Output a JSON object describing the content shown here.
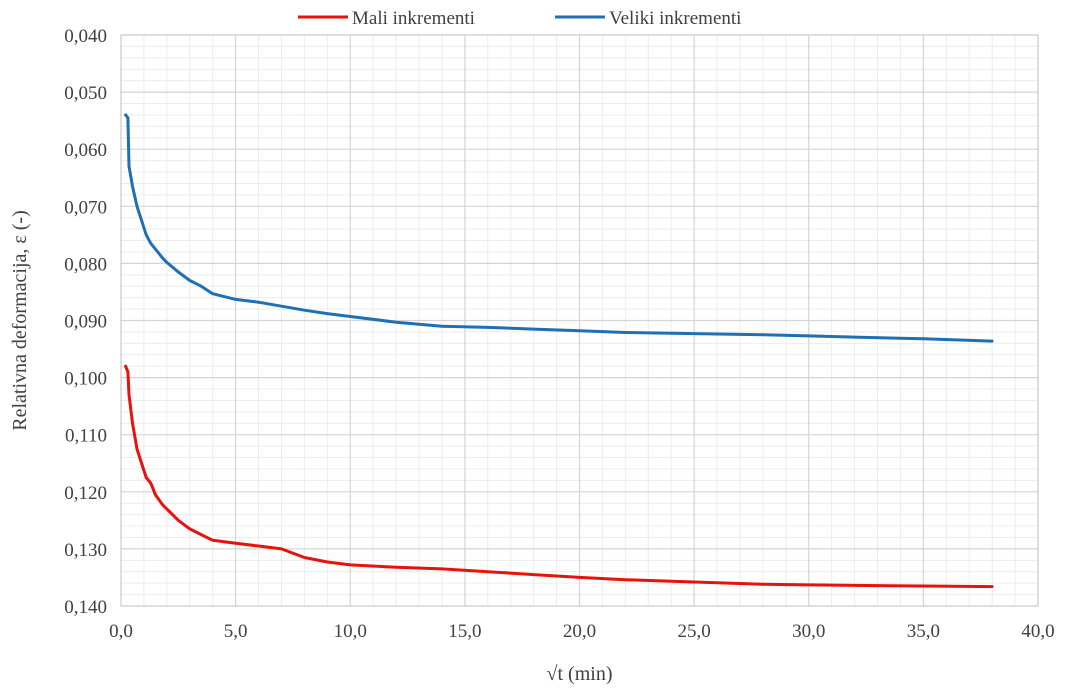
{
  "chart_data": {
    "type": "line",
    "xlabel": "√t (min)",
    "ylabel": "Relativna deformacija, ε (-)",
    "xlim": [
      0,
      40
    ],
    "ylim": [
      0.04,
      0.14
    ],
    "y_inverted": true,
    "x_ticks": [
      "0,0",
      "5,0",
      "10,0",
      "15,0",
      "20,0",
      "25,0",
      "30,0",
      "35,0",
      "40,0"
    ],
    "y_ticks": [
      "0,040",
      "0,050",
      "0,060",
      "0,070",
      "0,080",
      "0,090",
      "0,100",
      "0,110",
      "0,120",
      "0,130",
      "0,140"
    ],
    "grid": true,
    "minor_grid": true,
    "legend_position": "top",
    "series": [
      {
        "name": "Mali inkrementi",
        "color": "#e8120c",
        "x": [
          0.2,
          0.3,
          0.35,
          0.5,
          0.7,
          0.9,
          1.1,
          1.3,
          1.5,
          1.8,
          2.0,
          2.5,
          3.0,
          3.5,
          4.0,
          5.0,
          6.0,
          7.0,
          8.0,
          9.0,
          10.0,
          12.0,
          14.0,
          16.0,
          18.0,
          20.0,
          22.0,
          25.0,
          28.0,
          30.0,
          32.0,
          35.0,
          38.0
        ],
        "y": [
          0.098,
          0.099,
          0.103,
          0.108,
          0.1125,
          0.115,
          0.1175,
          0.1185,
          0.1205,
          0.1222,
          0.123,
          0.125,
          0.1265,
          0.1275,
          0.1285,
          0.129,
          0.1295,
          0.13,
          0.1315,
          0.1323,
          0.1328,
          0.1332,
          0.1335,
          0.134,
          0.1345,
          0.135,
          0.1354,
          0.1358,
          0.1362,
          0.1363,
          0.1364,
          0.1365,
          0.1366
        ]
      },
      {
        "name": "Veliki inkrementi",
        "color": "#1f6fb4",
        "x": [
          0.2,
          0.3,
          0.35,
          0.5,
          0.7,
          0.9,
          1.1,
          1.3,
          1.5,
          1.8,
          2.0,
          2.5,
          3.0,
          3.5,
          4.0,
          5.0,
          6.0,
          7.0,
          8.0,
          9.0,
          10.0,
          12.0,
          14.0,
          16.0,
          18.0,
          20.0,
          22.0,
          25.0,
          28.0,
          30.0,
          32.0,
          35.0,
          38.0
        ],
        "y": [
          0.054,
          0.0545,
          0.063,
          0.0665,
          0.07,
          0.0725,
          0.075,
          0.0765,
          0.0775,
          0.079,
          0.0798,
          0.0815,
          0.083,
          0.084,
          0.0853,
          0.0863,
          0.0868,
          0.0875,
          0.0882,
          0.0888,
          0.0893,
          0.0903,
          0.091,
          0.0912,
          0.0915,
          0.0918,
          0.0921,
          0.0923,
          0.0925,
          0.0927,
          0.0929,
          0.0932,
          0.0936
        ]
      }
    ]
  }
}
